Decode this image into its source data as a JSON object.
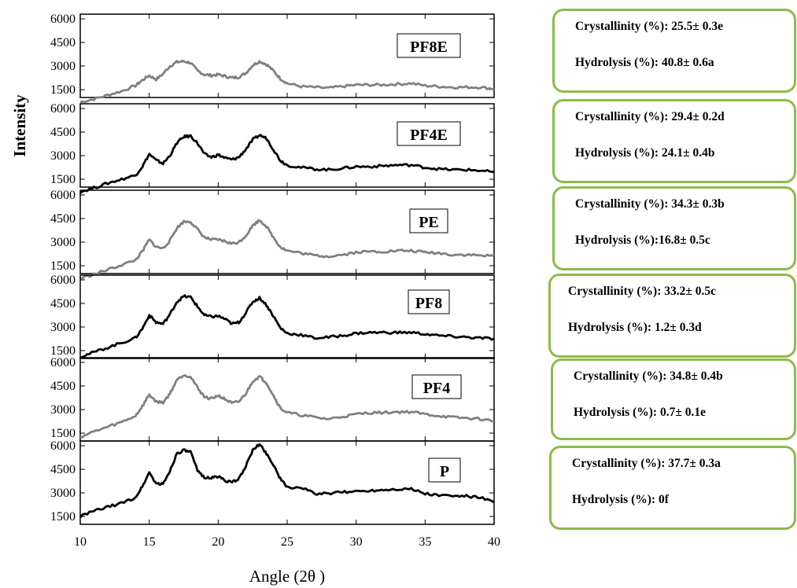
{
  "chart_data": {
    "type": "line",
    "xlabel": "Angle (2θ )",
    "ylabel": "Intensity",
    "xlim": [
      10,
      40
    ],
    "ylim": [
      1000,
      6300
    ],
    "xticks": [
      10,
      15,
      20,
      25,
      30,
      35,
      40
    ],
    "yticks": [
      1500,
      3000,
      4500,
      6000
    ],
    "x": [
      10,
      11,
      12,
      13,
      14,
      14.5,
      15,
      15.5,
      16,
      16.5,
      17,
      17.5,
      18,
      18.5,
      19,
      19.5,
      20,
      20.5,
      21,
      21.5,
      22,
      22.5,
      23,
      23.5,
      24,
      24.5,
      25,
      26,
      27,
      28,
      29,
      30,
      31,
      32,
      33,
      34,
      35,
      36,
      37,
      38,
      39,
      40
    ],
    "series": [
      {
        "name": "PF8E",
        "color": "#808080",
        "values": [
          700,
          900,
          1150,
          1400,
          1750,
          2100,
          2400,
          2150,
          2500,
          3000,
          3250,
          3300,
          3200,
          2700,
          2450,
          2400,
          2450,
          2350,
          2250,
          2300,
          2550,
          3050,
          3300,
          3100,
          2700,
          2200,
          1900,
          1700,
          1650,
          1600,
          1700,
          1800,
          1800,
          1800,
          1850,
          1900,
          1750,
          1700,
          1650,
          1650,
          1650,
          1550
        ]
      },
      {
        "name": "PF4E",
        "color": "#000000",
        "values": [
          700,
          950,
          1250,
          1500,
          1750,
          2300,
          3100,
          2700,
          2500,
          3000,
          3800,
          4200,
          4250,
          3800,
          3100,
          2900,
          3050,
          2850,
          2750,
          2900,
          3400,
          4000,
          4300,
          4100,
          3400,
          2700,
          2400,
          2250,
          2150,
          2100,
          2200,
          2300,
          2300,
          2350,
          2400,
          2400,
          2250,
          2150,
          2100,
          2100,
          2050,
          1950
        ]
      },
      {
        "name": "PE",
        "color": "#808080",
        "values": [
          700,
          950,
          1250,
          1550,
          1850,
          2400,
          3150,
          2700,
          2600,
          3100,
          3900,
          4300,
          4300,
          3800,
          3300,
          3150,
          3150,
          3050,
          2900,
          3000,
          3400,
          4050,
          4400,
          4000,
          3300,
          2700,
          2450,
          2300,
          2150,
          2100,
          2200,
          2350,
          2400,
          2400,
          2450,
          2450,
          2350,
          2300,
          2200,
          2200,
          2150,
          2100
        ]
      },
      {
        "name": "PF8",
        "color": "#000000",
        "values": [
          1100,
          1400,
          1700,
          2000,
          2300,
          2900,
          3750,
          3300,
          3200,
          3800,
          4600,
          4950,
          4900,
          4300,
          3750,
          3650,
          3700,
          3500,
          3200,
          3300,
          3900,
          4600,
          4850,
          4400,
          3700,
          2950,
          2600,
          2500,
          2300,
          2350,
          2450,
          2600,
          2650,
          2650,
          2650,
          2650,
          2550,
          2450,
          2400,
          2350,
          2300,
          2250
        ]
      },
      {
        "name": "PF4",
        "color": "#808080",
        "values": [
          1250,
          1600,
          1900,
          2200,
          2600,
          3200,
          3950,
          3500,
          3450,
          4000,
          4900,
          5200,
          5100,
          4400,
          3800,
          3700,
          3900,
          3650,
          3400,
          3500,
          4000,
          4800,
          5100,
          4700,
          3900,
          3100,
          2800,
          2650,
          2500,
          2400,
          2550,
          2700,
          2800,
          2800,
          2850,
          2850,
          2700,
          2600,
          2500,
          2450,
          2400,
          2250
        ]
      },
      {
        "name": "P",
        "color": "#000000",
        "values": [
          1500,
          1850,
          2100,
          2350,
          2700,
          3400,
          4300,
          3600,
          3550,
          4400,
          5500,
          5700,
          5600,
          4400,
          4000,
          3950,
          4050,
          3800,
          3650,
          3900,
          4700,
          5700,
          6100,
          5500,
          4800,
          3900,
          3350,
          3350,
          2950,
          2950,
          3050,
          3100,
          3150,
          3200,
          3250,
          3250,
          2950,
          2850,
          2800,
          2800,
          2700,
          2400
        ]
      }
    ]
  },
  "panels": [
    {
      "label": "PF8E",
      "crystallinity": "Crystallinity (%): 25.5± 0.3e",
      "hydrolysis": "Hydrolysis (%): 40.8± 0.6a"
    },
    {
      "label": "PF4E",
      "crystallinity": "Crystallinity (%): 29.4± 0.2d",
      "hydrolysis": "Hydrolysis (%): 24.1± 0.4b"
    },
    {
      "label": "PE",
      "crystallinity": "Crystallinity (%): 34.3± 0.3b",
      "hydrolysis": "Hydrolysis (%):16.8± 0.5c"
    },
    {
      "label": "PF8",
      "crystallinity": "Crystallinity (%): 33.2± 0.5c",
      "hydrolysis": "Hydrolysis (%): 1.2± 0.3d"
    },
    {
      "label": "PF4",
      "crystallinity": "Crystallinity (%): 34.8± 0.4b",
      "hydrolysis": "Hydrolysis (%): 0.7± 0.1e"
    },
    {
      "label": "P",
      "crystallinity": "Crystallinity (%): 37.7± 0.3a",
      "hydrolysis": "Hydrolysis (%): 0f"
    }
  ],
  "colors": {
    "box_border": "#8dbb48",
    "black_series": "#000000",
    "gray_series": "#808080"
  }
}
